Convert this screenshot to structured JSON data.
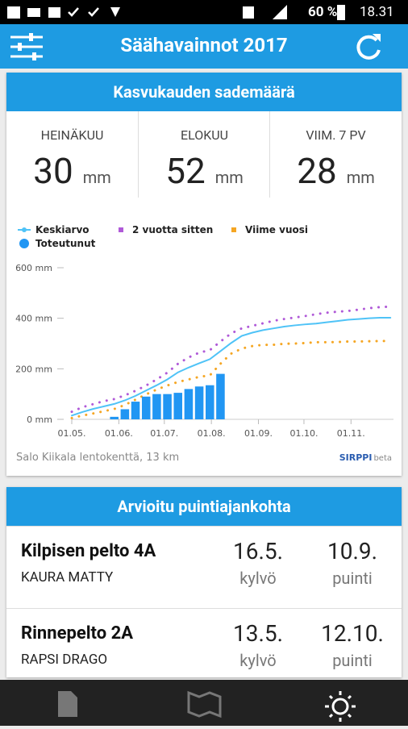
{
  "status": {
    "battery": "60 %",
    "time": "18.31"
  },
  "app_bar": {
    "title": "Säähavainnot 2017"
  },
  "rain_card": {
    "title": "Kasvukauden sademäärä",
    "stats": [
      {
        "label": "HEINÄKUU",
        "value": "30",
        "unit": "mm"
      },
      {
        "label": "ELOKUU",
        "value": "52",
        "unit": "mm"
      },
      {
        "label": "VIIM. 7 PV",
        "value": "28",
        "unit": "mm"
      }
    ],
    "source": "Salo Kiikala lentokenttä, 13 km",
    "logo": "SIRPPI",
    "logo_suffix": "beta"
  },
  "chart_data": {
    "type": "line",
    "x": [
      0,
      7,
      14,
      21,
      28,
      35,
      42,
      49,
      56,
      63,
      70,
      77,
      84,
      91,
      98,
      105,
      112,
      119,
      126,
      133,
      140,
      147,
      154,
      161,
      168,
      175,
      182,
      189,
      196,
      203,
      210
    ],
    "xlim": [
      0,
      212
    ],
    "xticks": [
      {
        "value": 0,
        "label": "01.05."
      },
      {
        "value": 31,
        "label": "01.06."
      },
      {
        "value": 61,
        "label": "01.07."
      },
      {
        "value": 92,
        "label": "01.08."
      },
      {
        "value": 123,
        "label": "01.09."
      },
      {
        "value": 153,
        "label": "01.10."
      },
      {
        "value": 184,
        "label": "01.11."
      }
    ],
    "ylim": [
      0,
      600
    ],
    "yticks": [
      {
        "value": 0,
        "label": "0 mm"
      },
      {
        "value": 200,
        "label": "200 mm"
      },
      {
        "value": 400,
        "label": "400 mm"
      },
      {
        "value": 600,
        "label": "600 mm"
      }
    ],
    "grid": false,
    "series": [
      {
        "name": "Keskiarvo",
        "color": "#4fc3f7",
        "style": "solid",
        "values": [
          15,
          29,
          41,
          51,
          61,
          75,
          93,
          114,
          135,
          158,
          186,
          205,
          222,
          238,
          270,
          302,
          330,
          343,
          353,
          360,
          367,
          372,
          376,
          379,
          384,
          389,
          394,
          397,
          400,
          402,
          402
        ]
      },
      {
        "name": "2 vuotta sitten",
        "color": "#b05ad8",
        "style": "dotted",
        "values": [
          30,
          48,
          60,
          72,
          80,
          95,
          113,
          134,
          158,
          185,
          220,
          245,
          264,
          274,
          308,
          340,
          360,
          370,
          380,
          390,
          397,
          403,
          409,
          416,
          422,
          426,
          429,
          434,
          440,
          444,
          446
        ]
      },
      {
        "name": "Viime vuosi",
        "color": "#f5a623",
        "style": "dotted",
        "values": [
          5,
          15,
          23,
          32,
          41,
          57,
          78,
          99,
          118,
          134,
          148,
          158,
          168,
          174,
          220,
          260,
          280,
          290,
          295,
          295,
          299,
          300,
          302,
          305,
          305,
          306,
          308,
          308,
          309,
          310,
          310
        ]
      },
      {
        "name": "Toteutunut",
        "color": "#2196f3",
        "style": "bar",
        "values": [
          null,
          null,
          null,
          null,
          10,
          40,
          70,
          90,
          100,
          100,
          105,
          120,
          130,
          135,
          180,
          null,
          null,
          null,
          null,
          null,
          null,
          null,
          null,
          null,
          null,
          null,
          null,
          null,
          null,
          null,
          null
        ]
      }
    ]
  },
  "harvest_card": {
    "title": "Arvioitu puintiajankohta",
    "rows": [
      {
        "field": "Kilpisen pelto 4A",
        "crop": "KAURA MATTY",
        "sow_date": "16.5.",
        "sow_label": "kylvö",
        "harvest_date": "10.9.",
        "harvest_label": "puinti"
      },
      {
        "field": "Rinnepelto 2A",
        "crop": "RAPSI DRAGO",
        "sow_date": "13.5.",
        "sow_label": "kylvö",
        "harvest_date": "12.10.",
        "harvest_label": "puinti"
      }
    ]
  }
}
